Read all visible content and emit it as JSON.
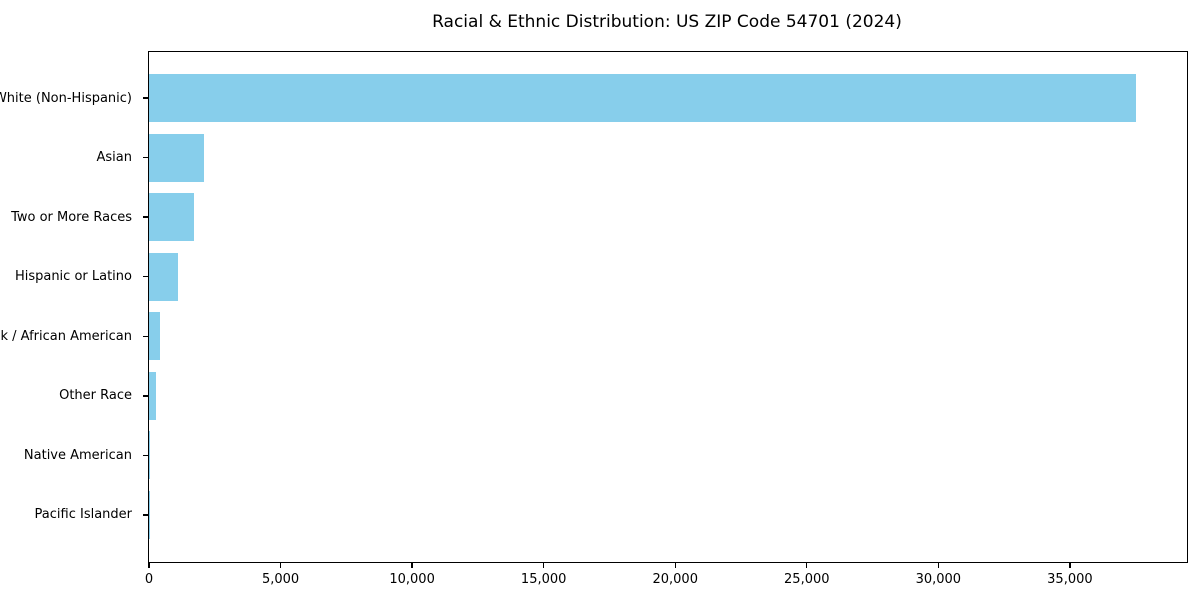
{
  "chart_data": {
    "type": "bar",
    "orientation": "horizontal",
    "title": "Racial & Ethnic Distribution: US ZIP Code 54701 (2024)",
    "categories": [
      "White (Non-Hispanic)",
      "Asian",
      "Two or More Races",
      "Hispanic or Latino",
      "Black / African American",
      "Other Race",
      "Native American",
      "Pacific Islander"
    ],
    "values": [
      37500,
      2100,
      1700,
      1100,
      400,
      250,
      50,
      15
    ],
    "bar_color": "#87CEEB",
    "background_color": "#ffffff",
    "text_color": "#000000",
    "xlabel": "",
    "ylabel": "",
    "xlim": [
      0,
      39450
    ],
    "x_ticks": [
      0,
      5000,
      10000,
      15000,
      20000,
      25000,
      30000,
      35000
    ],
    "x_tick_labels": [
      "0",
      "5,000",
      "10,000",
      "15,000",
      "20,000",
      "25,000",
      "30,000",
      "35,000"
    ],
    "grid": false,
    "legend": "none"
  }
}
